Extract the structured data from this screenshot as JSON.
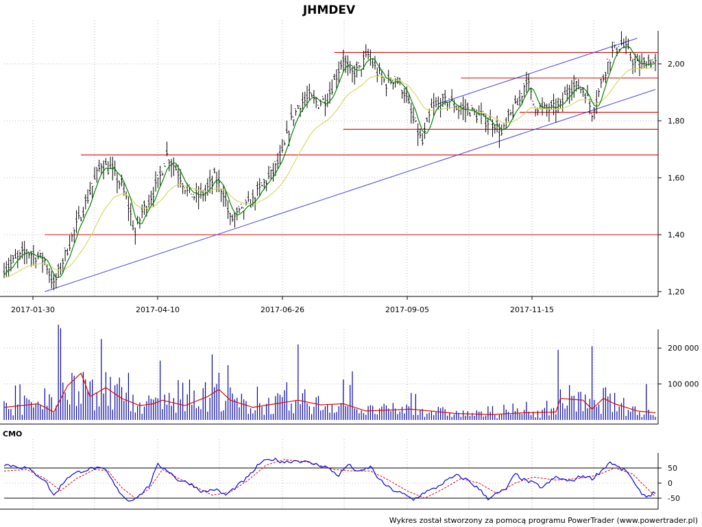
{
  "chart_data": [
    {
      "type": "ohlc",
      "title": "JHMDEV",
      "x_tick_labels": [
        "2017-01-30",
        "2017-04-10",
        "2017-06-26",
        "2017-09-05",
        "2017-11-15"
      ],
      "y_tick_labels": [
        "2,00",
        "1,80",
        "1,60",
        "1,40",
        "1,20"
      ],
      "ylim": [
        1.18,
        2.12
      ],
      "grid": true,
      "series": [
        {
          "kind": "ohlc",
          "color": "#000000"
        },
        {
          "kind": "sma-short",
          "color": "#008000"
        },
        {
          "kind": "sma-long",
          "color": "#d8d860"
        }
      ],
      "price_path": [
        [
          0,
          1.28
        ],
        [
          10,
          1.34
        ],
        [
          18,
          1.31
        ],
        [
          22,
          1.22
        ],
        [
          28,
          1.35
        ],
        [
          33,
          1.45
        ],
        [
          38,
          1.55
        ],
        [
          43,
          1.65
        ],
        [
          48,
          1.62
        ],
        [
          52,
          1.57
        ],
        [
          55,
          1.5
        ],
        [
          58,
          1.4
        ],
        [
          61,
          1.48
        ],
        [
          64,
          1.52
        ],
        [
          68,
          1.58
        ],
        [
          72,
          1.68
        ],
        [
          77,
          1.62
        ],
        [
          81,
          1.55
        ],
        [
          85,
          1.53
        ],
        [
          89,
          1.55
        ],
        [
          93,
          1.6
        ],
        [
          97,
          1.55
        ],
        [
          100,
          1.45
        ],
        [
          105,
          1.48
        ],
        [
          110,
          1.52
        ],
        [
          115,
          1.58
        ],
        [
          119,
          1.62
        ],
        [
          123,
          1.68
        ],
        [
          127,
          1.8
        ],
        [
          131,
          1.86
        ],
        [
          135,
          1.88
        ],
        [
          139,
          1.86
        ],
        [
          143,
          1.88
        ],
        [
          147,
          1.96
        ],
        [
          150,
          2.02
        ],
        [
          153,
          1.96
        ],
        [
          157,
          1.98
        ],
        [
          161,
          2.03
        ],
        [
          165,
          1.97
        ],
        [
          169,
          1.93
        ],
        [
          173,
          1.95
        ],
        [
          177,
          1.9
        ],
        [
          181,
          1.8
        ],
        [
          185,
          1.72
        ],
        [
          189,
          1.84
        ],
        [
          193,
          1.86
        ],
        [
          197,
          1.87
        ],
        [
          201,
          1.84
        ],
        [
          205,
          1.84
        ],
        [
          209,
          1.82
        ],
        [
          213,
          1.8
        ],
        [
          217,
          1.79
        ],
        [
          220,
          1.75
        ],
        [
          224,
          1.82
        ],
        [
          228,
          1.87
        ],
        [
          231,
          1.95
        ],
        [
          234,
          1.86
        ],
        [
          238,
          1.84
        ],
        [
          242,
          1.84
        ],
        [
          246,
          1.85
        ],
        [
          250,
          1.92
        ],
        [
          254,
          1.92
        ],
        [
          257,
          1.9
        ],
        [
          260,
          1.83
        ],
        [
          263,
          1.9
        ],
        [
          266,
          1.98
        ],
        [
          269,
          2.04
        ],
        [
          273,
          2.07
        ],
        [
          276,
          2.04
        ],
        [
          279,
          2.0
        ],
        [
          282,
          1.99
        ],
        [
          285,
          2.01
        ],
        [
          288,
          2.0
        ]
      ],
      "horizontal_levels": [
        {
          "from": 18,
          "to": 288,
          "value": 1.4,
          "color": "#e00000"
        },
        {
          "from": 34,
          "to": 288,
          "value": 1.68,
          "color": "#e00000"
        },
        {
          "from": 150,
          "to": 288,
          "value": 1.77,
          "color": "#e00000"
        },
        {
          "from": 228,
          "to": 288,
          "value": 1.83,
          "color": "#e00000"
        },
        {
          "from": 202,
          "to": 288,
          "value": 1.95,
          "color": "#e00000"
        },
        {
          "from": 146,
          "to": 288,
          "value": 2.04,
          "color": "#e00000"
        }
      ],
      "trend_lines": [
        {
          "from": [
            18,
            1.2
          ],
          "to": [
            288,
            1.91
          ],
          "color": "#4040e0"
        },
        {
          "from": [
            192,
            1.86
          ],
          "to": [
            280,
            2.09
          ],
          "color": "#4040e0"
        }
      ]
    },
    {
      "type": "bar",
      "y_tick_labels": [
        "200 000",
        "100 000"
      ],
      "ylim": [
        0,
        270000
      ],
      "series": [
        {
          "kind": "volume-bars",
          "color": "#0000a0"
        },
        {
          "kind": "volume-average",
          "color": "#e00000"
        }
      ],
      "volume_spikes": [
        [
          24,
          265000
        ],
        [
          25,
          255000
        ],
        [
          43,
          225000
        ],
        [
          47,
          120000
        ],
        [
          51,
          118000
        ],
        [
          69,
          165000
        ],
        [
          92,
          182000
        ],
        [
          125,
          105000
        ],
        [
          130,
          210000
        ],
        [
          154,
          135000
        ],
        [
          245,
          195000
        ],
        [
          260,
          205000
        ],
        [
          284,
          100000
        ]
      ],
      "average_path": [
        [
          0,
          35000
        ],
        [
          15,
          45000
        ],
        [
          22,
          22000
        ],
        [
          28,
          95000
        ],
        [
          34,
          130000
        ],
        [
          38,
          65000
        ],
        [
          45,
          90000
        ],
        [
          52,
          60000
        ],
        [
          60,
          40000
        ],
        [
          66,
          45000
        ],
        [
          70,
          55000
        ],
        [
          80,
          40000
        ],
        [
          90,
          65000
        ],
        [
          95,
          85000
        ],
        [
          100,
          55000
        ],
        [
          110,
          35000
        ],
        [
          120,
          45000
        ],
        [
          130,
          55000
        ],
        [
          140,
          42000
        ],
        [
          150,
          45000
        ],
        [
          160,
          25000
        ],
        [
          180,
          30000
        ],
        [
          200,
          18000
        ],
        [
          215,
          15000
        ],
        [
          230,
          20000
        ],
        [
          244,
          22000
        ],
        [
          246,
          60000
        ],
        [
          256,
          55000
        ],
        [
          260,
          30000
        ],
        [
          265,
          60000
        ],
        [
          270,
          45000
        ],
        [
          280,
          25000
        ],
        [
          288,
          20000
        ]
      ]
    },
    {
      "type": "line",
      "panel_label": "CMO",
      "y_tick_labels": [
        "50",
        "0",
        "-50"
      ],
      "ylim": [
        -80,
        95
      ],
      "reference_levels": [
        50,
        -50
      ],
      "series": [
        {
          "kind": "cmo",
          "color": "#0000e0"
        },
        {
          "kind": "cmo-signal",
          "color": "#e00000"
        }
      ],
      "cmo_path": [
        [
          0,
          62
        ],
        [
          10,
          50
        ],
        [
          18,
          10
        ],
        [
          22,
          -42
        ],
        [
          28,
          20
        ],
        [
          34,
          40
        ],
        [
          40,
          50
        ],
        [
          45,
          42
        ],
        [
          50,
          -20
        ],
        [
          55,
          -60
        ],
        [
          60,
          -40
        ],
        [
          64,
          -10
        ],
        [
          68,
          60
        ],
        [
          72,
          45
        ],
        [
          77,
          10
        ],
        [
          82,
          0
        ],
        [
          88,
          -30
        ],
        [
          93,
          -20
        ],
        [
          98,
          -40
        ],
        [
          103,
          -10
        ],
        [
          108,
          20
        ],
        [
          113,
          65
        ],
        [
          118,
          80
        ],
        [
          124,
          70
        ],
        [
          130,
          75
        ],
        [
          136,
          65
        ],
        [
          142,
          55
        ],
        [
          148,
          25
        ],
        [
          152,
          62
        ],
        [
          157,
          35
        ],
        [
          162,
          55
        ],
        [
          166,
          10
        ],
        [
          171,
          -20
        ],
        [
          176,
          -35
        ],
        [
          181,
          -55
        ],
        [
          186,
          -30
        ],
        [
          190,
          -20
        ],
        [
          195,
          5
        ],
        [
          200,
          25
        ],
        [
          205,
          10
        ],
        [
          210,
          -20
        ],
        [
          214,
          -50
        ],
        [
          218,
          -35
        ],
        [
          222,
          -20
        ],
        [
          226,
          30
        ],
        [
          230,
          10
        ],
        [
          234,
          0
        ],
        [
          238,
          -15
        ],
        [
          244,
          20
        ],
        [
          250,
          5
        ],
        [
          256,
          25
        ],
        [
          260,
          15
        ],
        [
          264,
          40
        ],
        [
          268,
          70
        ],
        [
          272,
          50
        ],
        [
          276,
          35
        ],
        [
          280,
          -20
        ],
        [
          284,
          -45
        ],
        [
          288,
          -30
        ]
      ],
      "signal_path": [
        [
          0,
          40
        ],
        [
          10,
          45
        ],
        [
          18,
          15
        ],
        [
          25,
          -25
        ],
        [
          32,
          15
        ],
        [
          40,
          45
        ],
        [
          46,
          40
        ],
        [
          52,
          -15
        ],
        [
          58,
          -50
        ],
        [
          64,
          -20
        ],
        [
          70,
          45
        ],
        [
          76,
          20
        ],
        [
          84,
          -10
        ],
        [
          92,
          -40
        ],
        [
          100,
          -30
        ],
        [
          108,
          10
        ],
        [
          116,
          60
        ],
        [
          124,
          78
        ],
        [
          134,
          70
        ],
        [
          146,
          45
        ],
        [
          154,
          40
        ],
        [
          162,
          40
        ],
        [
          170,
          10
        ],
        [
          178,
          -25
        ],
        [
          186,
          -50
        ],
        [
          194,
          -20
        ],
        [
          202,
          15
        ],
        [
          210,
          0
        ],
        [
          218,
          -35
        ],
        [
          226,
          0
        ],
        [
          234,
          20
        ],
        [
          244,
          10
        ],
        [
          254,
          15
        ],
        [
          262,
          25
        ],
        [
          270,
          50
        ],
        [
          278,
          30
        ],
        [
          288,
          -45
        ]
      ]
    }
  ],
  "footer_text": "Wykres został stworzony za pomocą programu PowerTrader (www.powertrader.pl)",
  "colors": {
    "price_bars": "#000000",
    "short_average": "#008000",
    "long_average": "#d8d860",
    "levels": "#e00000",
    "trend": "#4040e0",
    "volume": "#0000a0",
    "cmo": "#0000e0",
    "cmo_signal": "#e00000",
    "grid": "#a0a0a0"
  }
}
